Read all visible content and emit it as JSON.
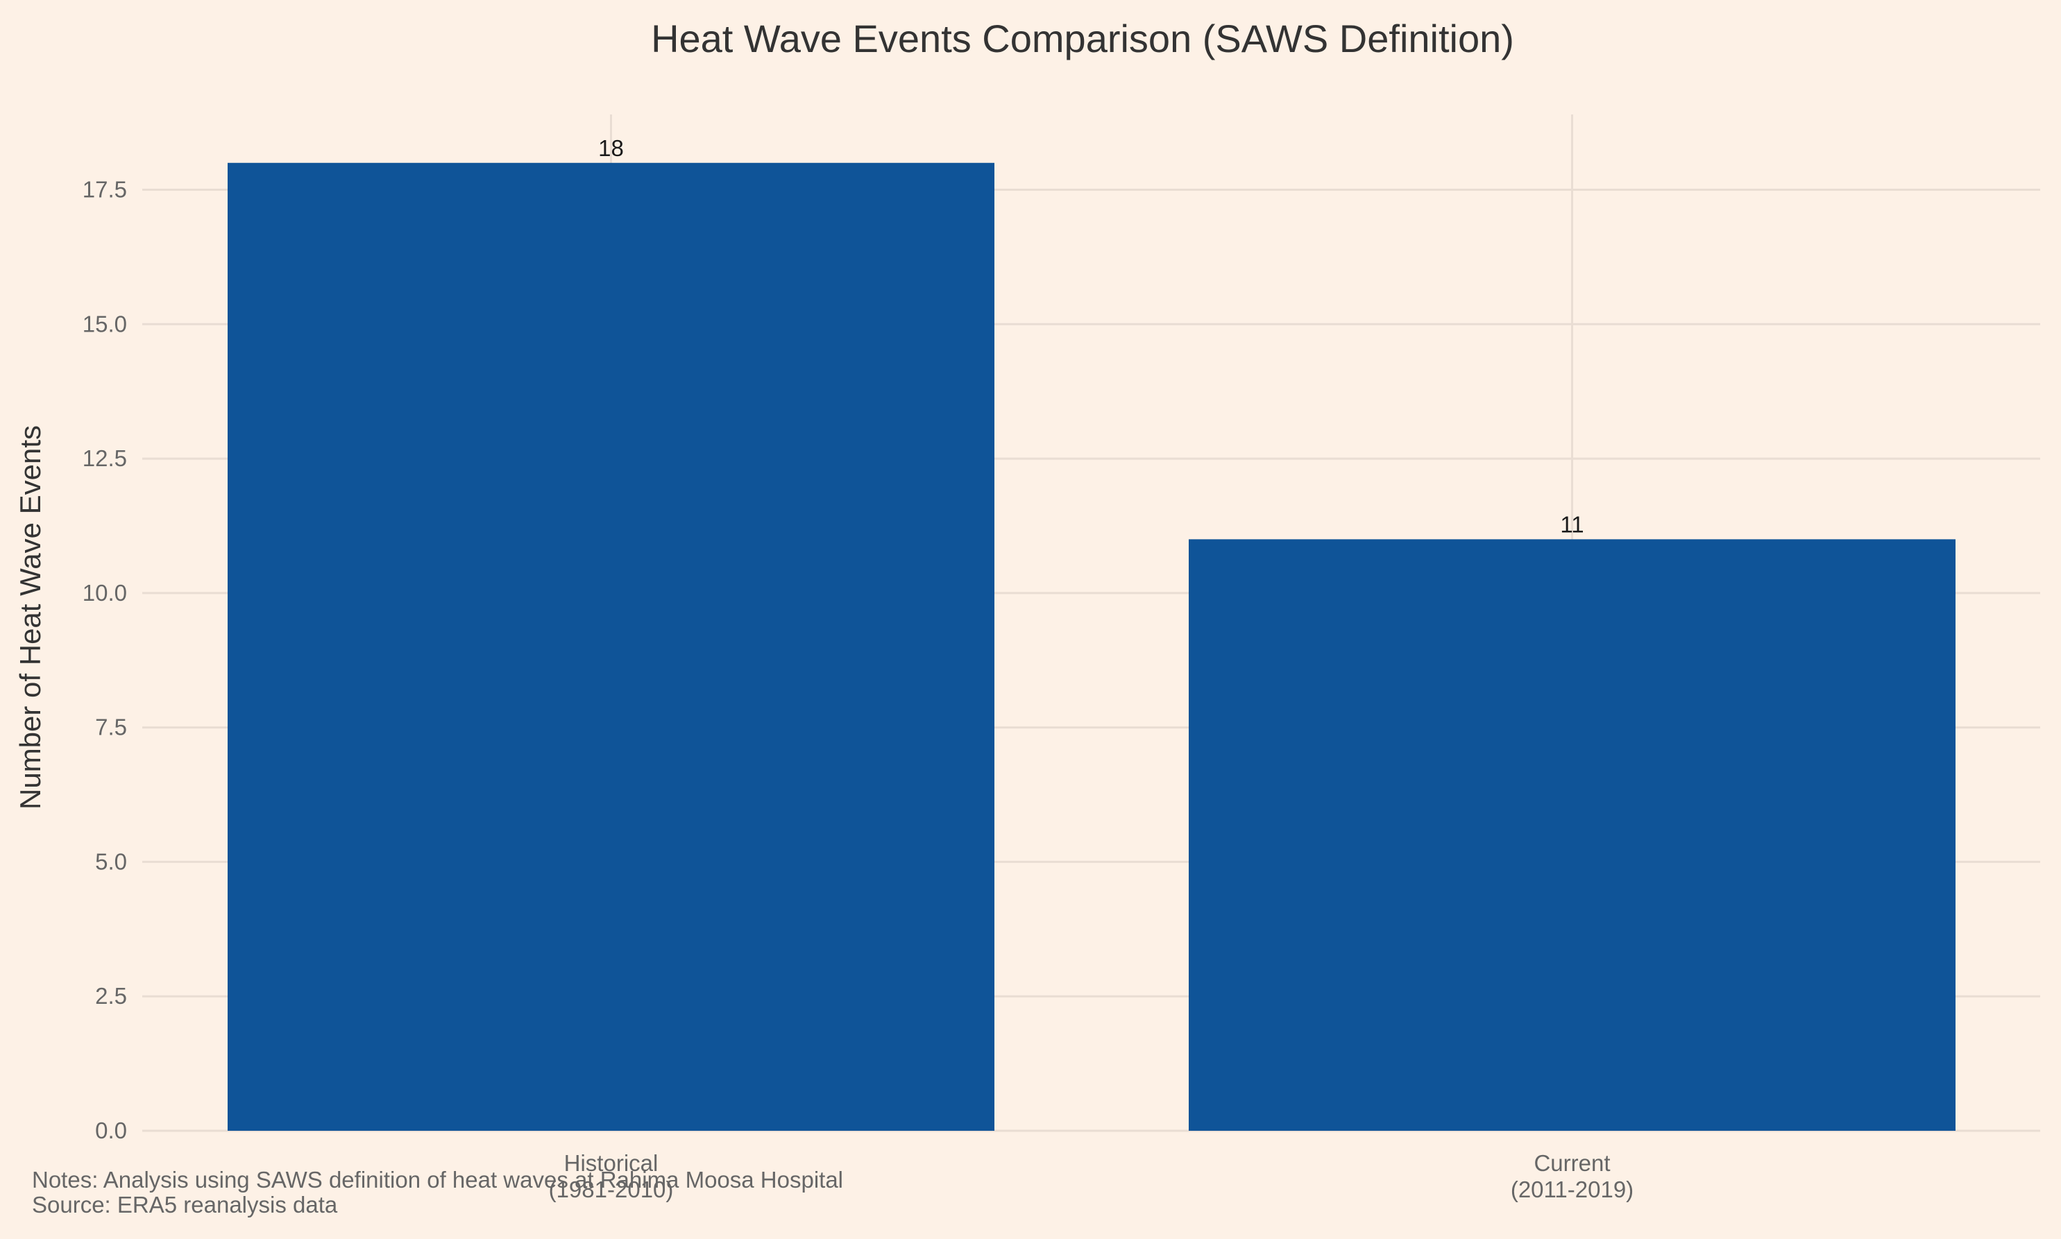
{
  "chart_data": {
    "type": "bar",
    "title": "Heat Wave Events Comparison (SAWS Definition)",
    "xlabel": "",
    "ylabel": "Number of Heat Wave Events",
    "categories": [
      [
        "Historical",
        "(1981-2010)"
      ],
      [
        "Current",
        "(2011-2019)"
      ]
    ],
    "values": [
      18,
      11
    ],
    "data_labels": [
      "18",
      "11"
    ],
    "ylim": [
      0,
      18.9
    ],
    "yticks": [
      0.0,
      2.5,
      5.0,
      7.5,
      10.0,
      12.5,
      15.0,
      17.5
    ],
    "ytick_labels": [
      "0.0",
      "2.5",
      "5.0",
      "7.5",
      "10.0",
      "12.5",
      "15.0",
      "17.5"
    ],
    "grid": true,
    "bar_color": "#0f5498",
    "background_color": "#fdf1e6"
  },
  "notes": [
    "Notes: Analysis using SAWS definition of heat waves at Rahima Moosa Hospital",
    "Source: ERA5 reanalysis data"
  ]
}
